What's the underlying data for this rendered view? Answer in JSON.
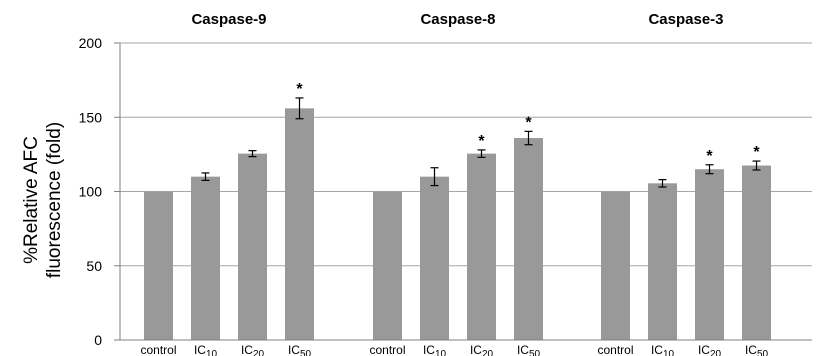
{
  "chart_data": {
    "type": "bar",
    "ylabel_lines": [
      "%Relative AFC",
      "fluorescence (fold)"
    ],
    "ylim": [
      0,
      200
    ],
    "yticks": [
      "0",
      "50",
      "100",
      "150",
      "200"
    ],
    "grid": true,
    "bar_color": "#999999",
    "groups": [
      {
        "title": "Caspase-9",
        "categories": [
          {
            "label": "control",
            "sub": ""
          },
          {
            "label": "IC",
            "sub": "10"
          },
          {
            "label": "IC",
            "sub": "20"
          },
          {
            "label": "IC",
            "sub": "50"
          }
        ],
        "values": [
          100,
          110,
          125.5,
          156
        ],
        "errors": [
          0,
          2.5,
          2,
          7
        ],
        "significant": [
          false,
          false,
          false,
          true
        ]
      },
      {
        "title": "Caspase-8",
        "categories": [
          {
            "label": "control",
            "sub": ""
          },
          {
            "label": "IC",
            "sub": "10"
          },
          {
            "label": "IC",
            "sub": "20"
          },
          {
            "label": "IC",
            "sub": "50"
          }
        ],
        "values": [
          100,
          110,
          125.5,
          136
        ],
        "errors": [
          0,
          6,
          2.5,
          4.5
        ],
        "significant": [
          false,
          false,
          true,
          true
        ]
      },
      {
        "title": "Caspase-3",
        "categories": [
          {
            "label": "control",
            "sub": ""
          },
          {
            "label": "IC",
            "sub": "10"
          },
          {
            "label": "IC",
            "sub": "20"
          },
          {
            "label": "IC",
            "sub": "50"
          }
        ],
        "values": [
          100,
          105.5,
          115,
          117.5
        ],
        "errors": [
          0,
          2.5,
          3,
          3
        ],
        "significant": [
          false,
          false,
          true,
          true
        ]
      }
    ],
    "significance_marker": "*"
  }
}
